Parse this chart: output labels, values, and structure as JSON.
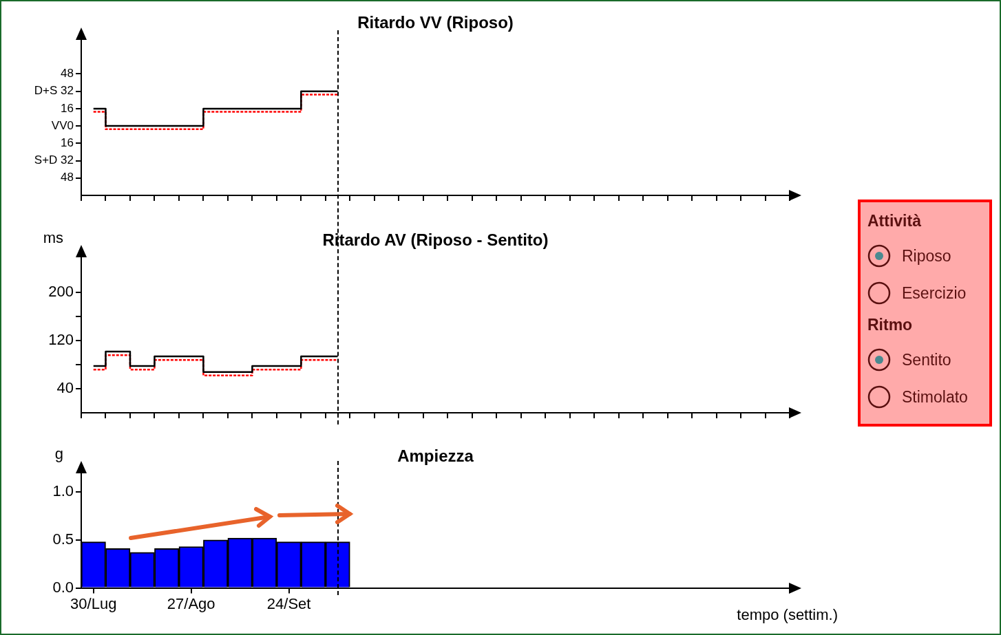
{
  "chart_data": [
    {
      "type": "step",
      "title": "Ritardo VV (Riposo)",
      "categories": [
        null,
        null,
        null,
        null,
        null,
        null,
        null,
        null,
        null,
        null,
        null,
        null,
        null,
        null,
        null,
        null,
        null,
        null,
        null,
        null,
        null,
        null,
        null,
        null,
        null,
        null,
        null,
        null,
        null
      ],
      "series": [
        {
          "color": "#000000",
          "line_style": "solid",
          "values": [
            16,
            0,
            0,
            0,
            0,
            16,
            16,
            16,
            16,
            32,
            32,
            null,
            null,
            null,
            null,
            null,
            null,
            null,
            null,
            null,
            null,
            null,
            null,
            null,
            null,
            null,
            null,
            null,
            null
          ]
        },
        {
          "color": "#ff0000",
          "line_style": "dashed",
          "values": [
            13,
            -3,
            -3,
            -3,
            -3,
            13,
            13,
            13,
            13,
            29,
            29,
            null,
            null,
            null,
            null,
            null,
            null,
            null,
            null,
            null,
            null,
            null,
            null,
            null,
            null,
            null,
            null,
            null,
            null
          ]
        }
      ],
      "ylim": [
        -64,
        80
      ],
      "yticks": [
        {
          "value": 48,
          "label": "48"
        },
        {
          "value": 32,
          "label": "D+S 32"
        },
        {
          "value": 16,
          "label": "16"
        },
        {
          "value": 0,
          "label": "VV0"
        },
        {
          "value": -16,
          "label": "16"
        },
        {
          "value": -32,
          "label": "S+D 32"
        },
        {
          "value": -48,
          "label": "48"
        }
      ],
      "tick_labels": "y"
    },
    {
      "type": "step",
      "title": "Ritardo AV (Riposo - Sentito)",
      "ylabel": "ms",
      "categories": [
        null,
        null,
        null,
        null,
        null,
        null,
        null,
        null,
        null,
        null,
        null,
        null,
        null,
        null,
        null,
        null,
        null,
        null,
        null,
        null,
        null,
        null,
        null,
        null,
        null,
        null,
        null,
        null,
        null
      ],
      "series": [
        {
          "color": "#000000",
          "line_style": "solid",
          "values": [
            78,
            102,
            78,
            94,
            94,
            68,
            68,
            78,
            78,
            94,
            94,
            null,
            null,
            null,
            null,
            null,
            null,
            null,
            null,
            null,
            null,
            null,
            null,
            null,
            null,
            null,
            null,
            null,
            null
          ]
        },
        {
          "color": "#ff0000",
          "line_style": "dashed",
          "values": [
            72,
            96,
            72,
            88,
            88,
            62,
            62,
            72,
            72,
            88,
            88,
            null,
            null,
            null,
            null,
            null,
            null,
            null,
            null,
            null,
            null,
            null,
            null,
            null,
            null,
            null,
            null,
            null,
            null
          ]
        }
      ],
      "ylim": [
        0,
        260
      ],
      "yticks": [
        40,
        {
          "value": 80,
          "label": null
        },
        120,
        {
          "value": 160,
          "label": null
        },
        200
      ],
      "tick_labels": "y"
    },
    {
      "type": "bar",
      "title": "Ampiezza",
      "ylabel": "g",
      "xlabel": "tempo (settim.)",
      "categories": [
        "30/Lug",
        null,
        null,
        null,
        "27/Ago",
        null,
        null,
        null,
        "24/Set",
        null,
        null,
        null,
        null,
        null,
        null,
        null,
        null,
        null,
        null,
        null,
        null,
        null,
        null,
        null,
        null,
        null,
        null,
        null,
        null
      ],
      "values": [
        0.48,
        0.41,
        0.37,
        0.41,
        0.43,
        0.5,
        0.52,
        0.52,
        0.48,
        0.48,
        0.48,
        null,
        null,
        null,
        null,
        null,
        null,
        null,
        null,
        null,
        null,
        null,
        null,
        null,
        null,
        null,
        null,
        null,
        null
      ],
      "color": "#0000ff",
      "ylim": [
        0,
        1.2
      ],
      "yticks": [
        {
          "value": 0,
          "label": "0.0"
        },
        {
          "value": 0.5,
          "label": "0.5"
        },
        {
          "value": 1,
          "label": "1.0"
        }
      ]
    },
    {
      "type": "other",
      "annotations": [
        "Attività",
        "Riposo",
        "Esercizio",
        "Ritmo",
        "Sentito",
        "Stimolato"
      ]
    }
  ]
}
